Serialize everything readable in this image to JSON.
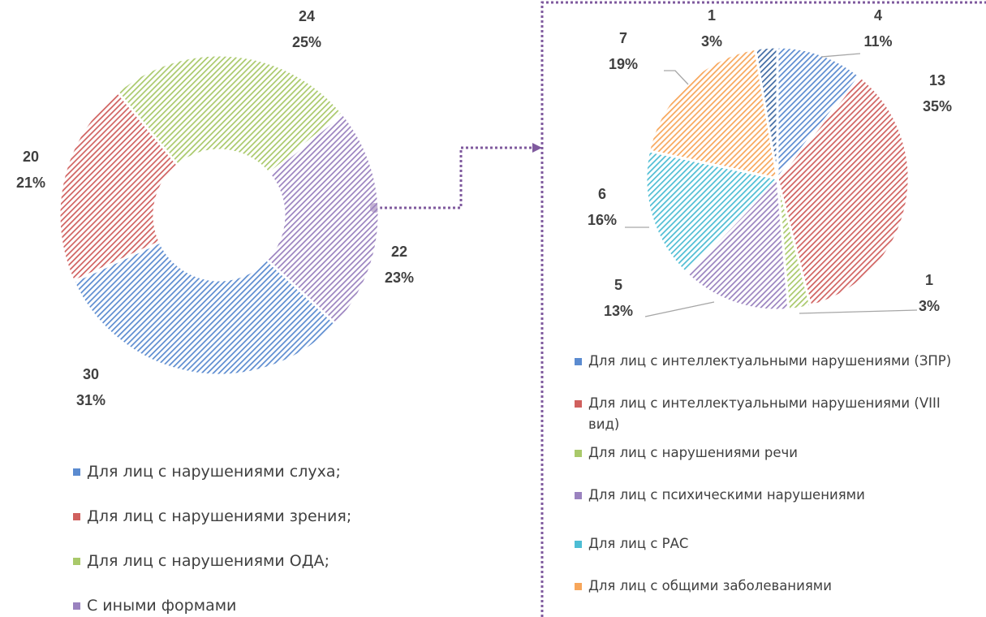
{
  "chart_data": [
    {
      "type": "donut",
      "categories": [
        "Для лиц с нарушениями слуха;",
        "Для лиц с нарушениями зрения;",
        "Для лиц с нарушениями ОДА;",
        "С иными формами"
      ],
      "values": [
        30,
        20,
        24,
        22
      ],
      "percentages": [
        31,
        21,
        25,
        23
      ],
      "percentage_labels": [
        "31%",
        "21%",
        "25%",
        "23%"
      ],
      "colors": [
        "#5b8bd0",
        "#d0605e",
        "#a9c96a",
        "#9a82bf"
      ]
    },
    {
      "type": "pie",
      "categories": [
        "Для лиц с интеллектуальными нарушениями (ЗПР)",
        "Для лиц с интеллектуальными нарушениями (VIII вид)",
        "Для лиц с нарушениями речи",
        "Для лиц с психическими нарушениями",
        "Для лиц с РАС",
        "Для лиц с общими заболеваниями",
        null
      ],
      "values": [
        4,
        13,
        1,
        5,
        6,
        7,
        1
      ],
      "percentages": [
        11,
        35,
        3,
        13,
        16,
        19,
        3
      ],
      "percentage_labels": [
        "11%",
        "35%",
        "3%",
        "13%",
        "16%",
        "19%",
        "3%"
      ],
      "colors": [
        "#5b8bd0",
        "#d0605e",
        "#a9c96a",
        "#9a82bf",
        "#4dbdd4",
        "#f7a65a",
        "#3f6aa3"
      ]
    }
  ]
}
